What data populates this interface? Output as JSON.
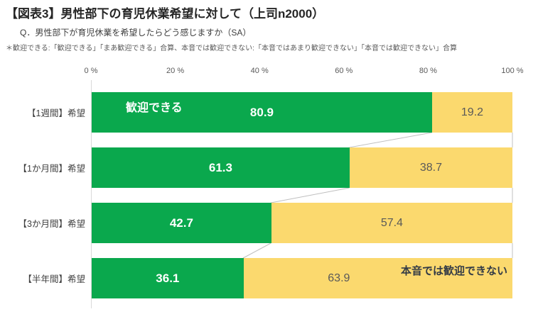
{
  "header": {
    "title": "【図表3】男性部下の育児休業希望に対して（上司n2000）",
    "question": "Q．男性部下が育児休業を希望したらどう感じますか（SA）",
    "footnote": "＊歓迎できる:「歓迎できる」「まあ歓迎できる」合算、本音では歓迎できない:「本音ではあまり歓迎できない」「本音では歓迎できない」合算"
  },
  "colors": {
    "green": "#0aa84d",
    "yellow": "#fbd96e",
    "axis": "#d9d9d9",
    "connector": "#c0c0c0",
    "value_on_yellow": "#595959",
    "annotation_dark": "#333b46"
  },
  "chart_data": {
    "type": "bar",
    "orientation": "horizontal",
    "stacked": true,
    "unit": "%",
    "xlim": [
      0,
      100
    ],
    "x_ticks": [
      "0 %",
      "20 %",
      "40 %",
      "60 %",
      "80 %",
      "100 %"
    ],
    "grid": false,
    "legend_position": "in-bar",
    "categories": [
      "【1週間】希望",
      "【1か月間】希望",
      "【3か月間】希望",
      "【半年間】希望"
    ],
    "series": [
      {
        "name": "歓迎できる",
        "color": "#0aa84d",
        "values": [
          80.9,
          61.3,
          42.7,
          36.1
        ]
      },
      {
        "name": "本音では歓迎できない",
        "color": "#fbd96e",
        "values": [
          19.2,
          38.7,
          57.4,
          63.9
        ]
      }
    ]
  }
}
